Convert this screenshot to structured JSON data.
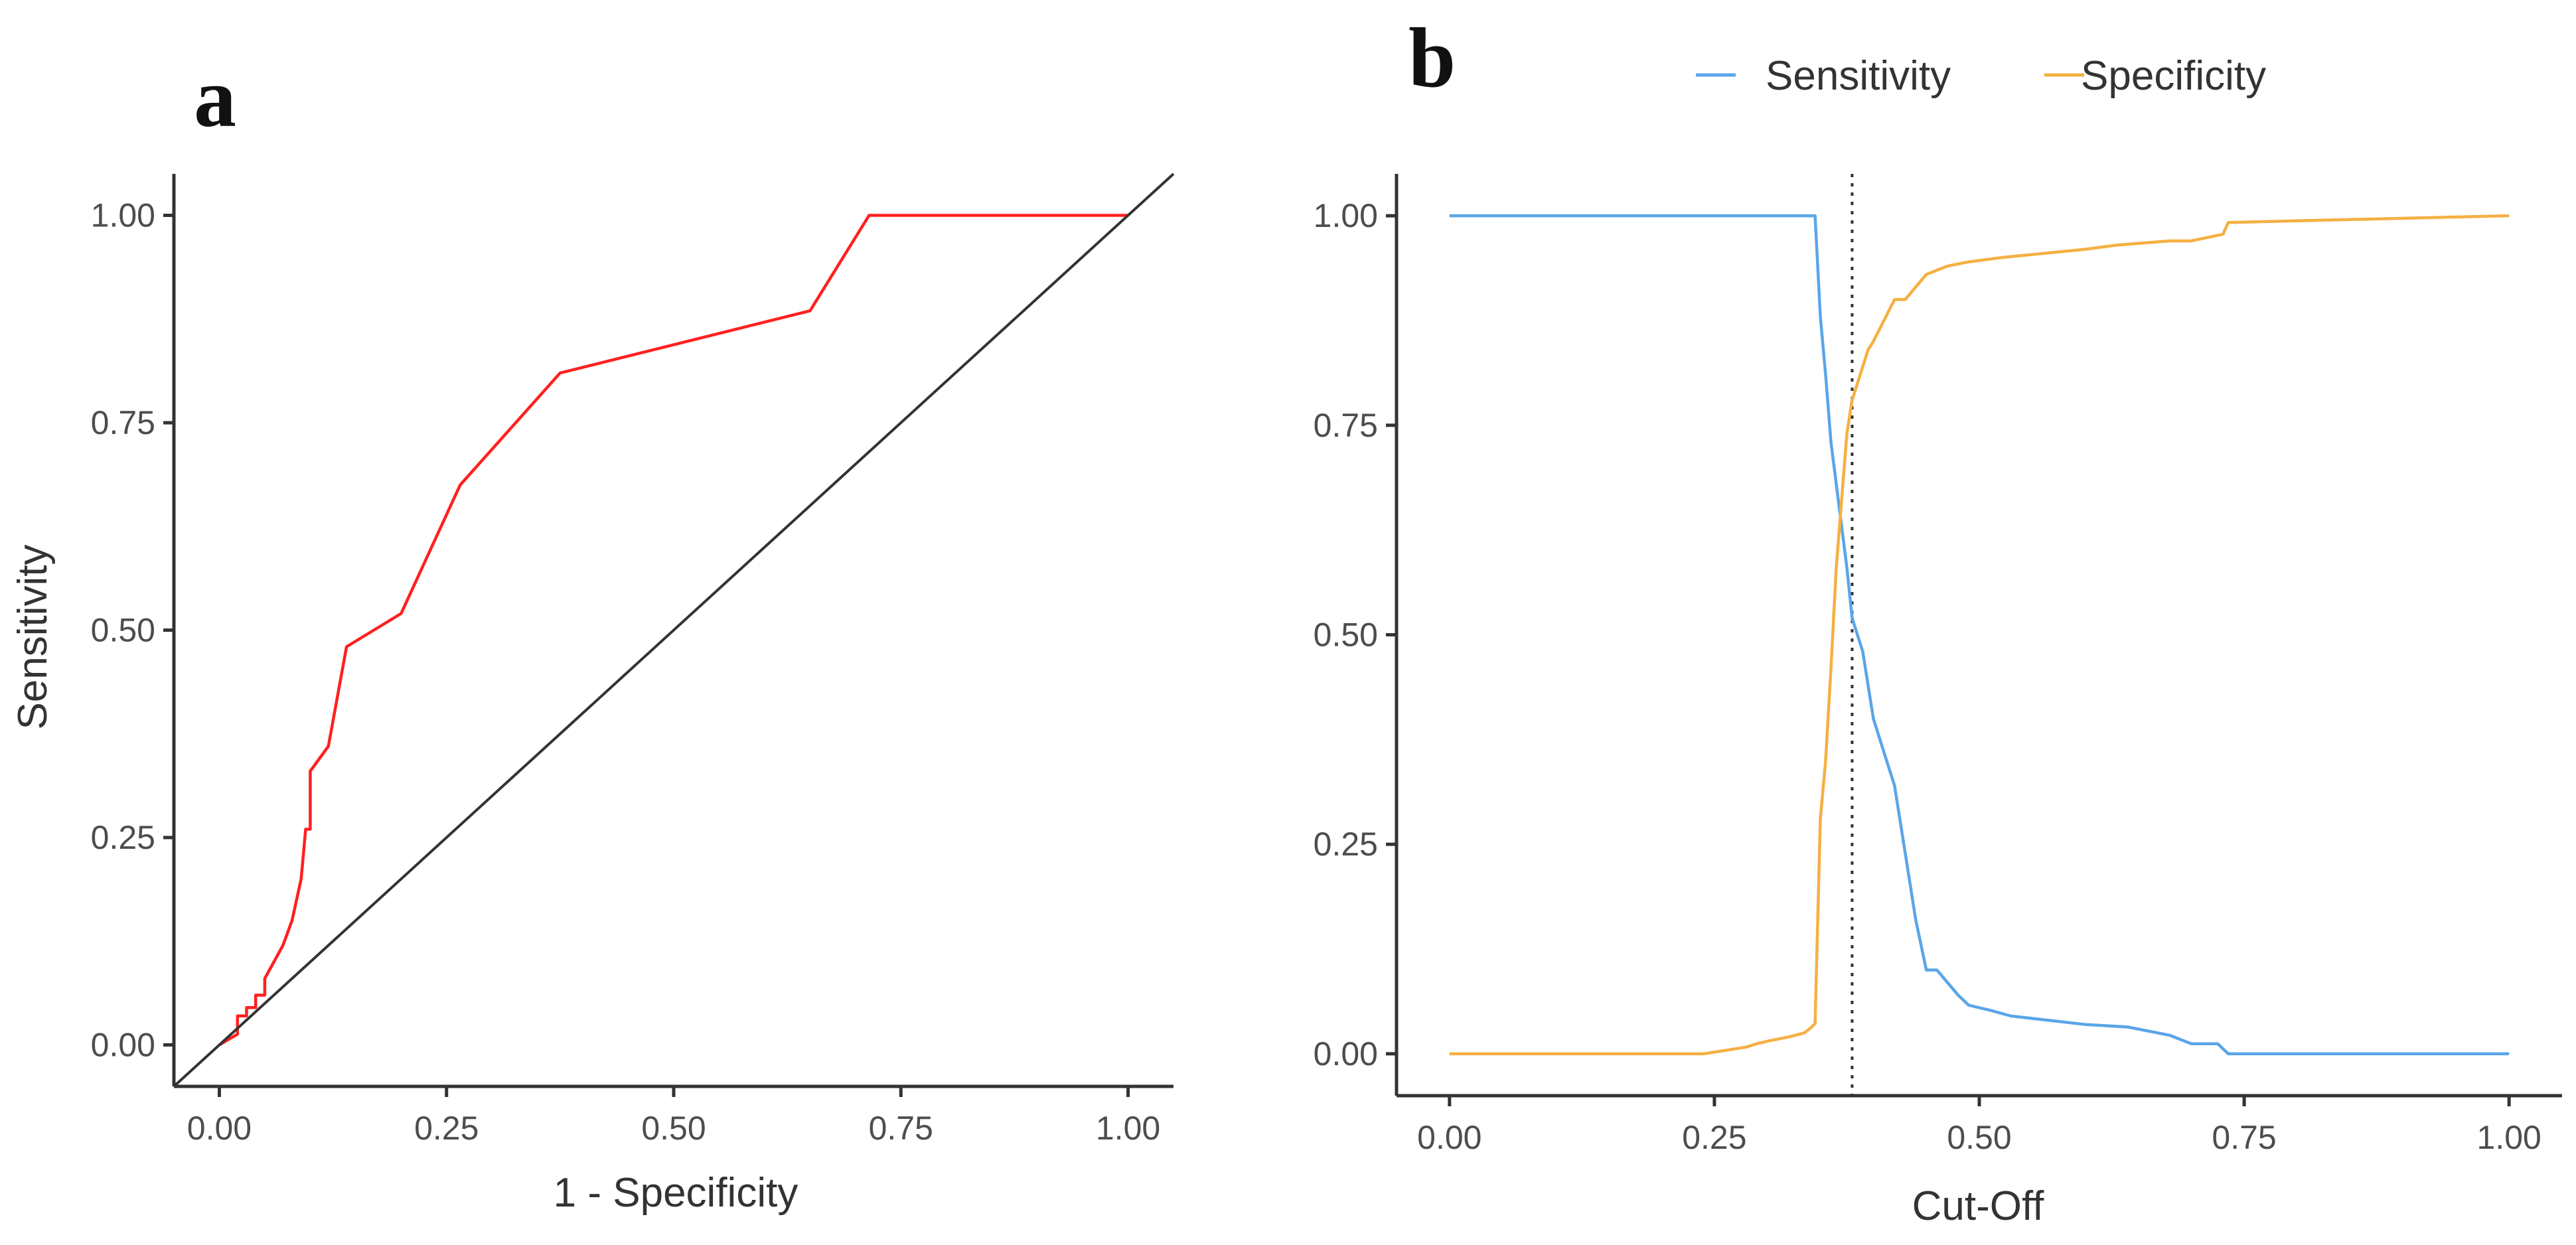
{
  "chart_data": [
    {
      "type": "line",
      "panel_label": "a",
      "xlabel": "1 - Specificity",
      "ylabel": "Sensitivity",
      "xlim": [
        -0.05,
        1.05
      ],
      "ylim": [
        -0.05,
        1.05
      ],
      "xticks": [
        0,
        0.25,
        0.5,
        0.75,
        1
      ],
      "yticks": [
        0,
        0.25,
        0.5,
        0.75,
        1
      ],
      "xtick_labels": [
        "0.00",
        "0.25",
        "0.50",
        "0.75",
        "1.00"
      ],
      "ytick_labels": [
        "0.00",
        "0.25",
        "0.50",
        "0.75",
        "1.00"
      ],
      "grid": false,
      "series": [
        {
          "name": "ROC curve",
          "color": "#ff2020",
          "x": [
            0.0,
            0.02,
            0.02,
            0.03,
            0.03,
            0.04,
            0.04,
            0.05,
            0.05,
            0.06,
            0.06,
            0.07,
            0.08,
            0.09,
            0.095,
            0.1,
            0.1,
            0.12,
            0.14,
            0.2,
            0.265,
            0.375,
            0.65,
            0.715,
            0.965,
            1.0
          ],
          "y": [
            0.0,
            0.013,
            0.035,
            0.035,
            0.045,
            0.045,
            0.06,
            0.06,
            0.08,
            0.1,
            0.1,
            0.12,
            0.15,
            0.2,
            0.26,
            0.26,
            0.33,
            0.36,
            0.48,
            0.52,
            0.675,
            0.81,
            0.885,
            1.0,
            1.0,
            1.0
          ]
        },
        {
          "name": "Reference diagonal",
          "color": "#333333",
          "x": [
            -0.05,
            1.05
          ],
          "y": [
            -0.05,
            1.05
          ]
        }
      ]
    },
    {
      "type": "line",
      "panel_label": "b",
      "xlabel": "Cut-Off",
      "ylabel": "",
      "xlim": [
        -0.05,
        1.05
      ],
      "ylim": [
        -0.05,
        1.05
      ],
      "xticks": [
        0,
        0.25,
        0.5,
        0.75,
        1
      ],
      "yticks": [
        0,
        0.25,
        0.5,
        0.75,
        1
      ],
      "xtick_labels": [
        "0.00",
        "0.25",
        "0.50",
        "0.75",
        "1.00"
      ],
      "ytick_labels": [
        "0.00",
        "0.25",
        "0.50",
        "0.75",
        "1.00"
      ],
      "grid": false,
      "legend_position": "top",
      "vline": {
        "x": 0.38,
        "style": "dotted",
        "color": "#333333"
      },
      "series": [
        {
          "name": "Sensitivity",
          "color": "#5aa5e8",
          "x": [
            0.0,
            0.345,
            0.35,
            0.355,
            0.36,
            0.365,
            0.37,
            0.375,
            0.38,
            0.385,
            0.39,
            0.395,
            0.4,
            0.41,
            0.42,
            0.43,
            0.44,
            0.45,
            0.46,
            0.47,
            0.48,
            0.49,
            0.5,
            0.51,
            0.53,
            0.6,
            0.64,
            0.68,
            0.7,
            0.725,
            0.735,
            1.0
          ],
          "y": [
            1.0,
            1.0,
            0.88,
            0.81,
            0.73,
            0.68,
            0.63,
            0.58,
            0.52,
            0.5,
            0.48,
            0.44,
            0.4,
            0.36,
            0.32,
            0.24,
            0.16,
            0.1,
            0.1,
            0.085,
            0.07,
            0.058,
            0.055,
            0.052,
            0.045,
            0.035,
            0.032,
            0.022,
            0.012,
            0.012,
            0.0,
            0.0
          ]
        },
        {
          "name": "Specificity",
          "color": "#f5b043",
          "x": [
            0.0,
            0.24,
            0.26,
            0.28,
            0.29,
            0.3,
            0.32,
            0.335,
            0.34,
            0.345,
            0.35,
            0.355,
            0.36,
            0.365,
            0.37,
            0.375,
            0.38,
            0.385,
            0.39,
            0.395,
            0.4,
            0.41,
            0.42,
            0.43,
            0.44,
            0.45,
            0.46,
            0.47,
            0.49,
            0.52,
            0.6,
            0.63,
            0.68,
            0.7,
            0.73,
            0.735,
            1.0
          ],
          "y": [
            0.0,
            0.0,
            0.004,
            0.008,
            0.012,
            0.015,
            0.02,
            0.025,
            0.03,
            0.036,
            0.28,
            0.35,
            0.46,
            0.58,
            0.66,
            0.74,
            0.78,
            0.8,
            0.82,
            0.84,
            0.85,
            0.875,
            0.9,
            0.9,
            0.915,
            0.93,
            0.935,
            0.94,
            0.945,
            0.95,
            0.96,
            0.965,
            0.97,
            0.97,
            0.978,
            0.992,
            1.0
          ]
        }
      ]
    }
  ]
}
